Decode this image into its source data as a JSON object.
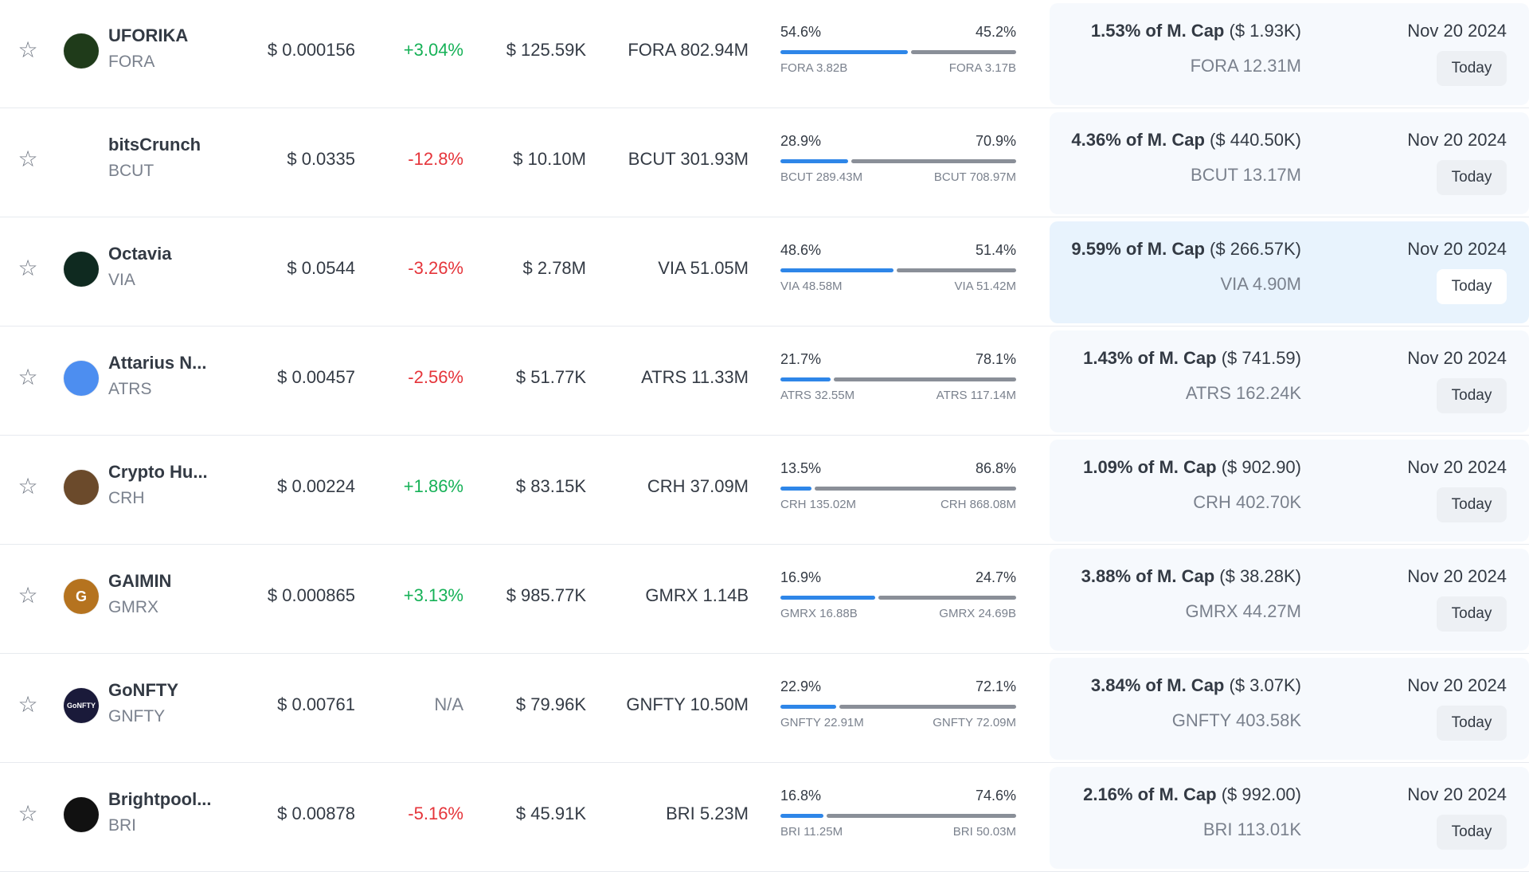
{
  "rows": [
    {
      "name": "UFORIKA",
      "symbol": "FORA",
      "logo_icon": "uforika-logo-icon",
      "logo_text": "",
      "logo_color": "#1f3b1a",
      "price": "$ 0.000156",
      "change": "+3.04%",
      "change_dir": "pos",
      "volume": "$ 125.59K",
      "unlock": "FORA 802.94M",
      "pct_left": "54.6%",
      "pct_right": "45.2%",
      "pct_left_value": 54.6,
      "pct_right_value": 45.2,
      "sub_left": "FORA 3.82B",
      "sub_right": "FORA 3.17B",
      "mcap_pct": "1.53% of M. Cap",
      "mcap_usd": "($ 1.93K)",
      "next_amount": "FORA 12.31M",
      "date": "Nov 20 2024",
      "date_badge": "Today",
      "highlight": false
    },
    {
      "name": "bitsCrunch",
      "symbol": "BCUT",
      "logo_icon": "bitscrunch-logo-icon",
      "logo_text": "",
      "logo_color": "#ffffff",
      "price": "$ 0.0335",
      "change": "-12.8%",
      "change_dir": "neg",
      "volume": "$ 10.10M",
      "unlock": "BCUT 301.93M",
      "pct_left": "28.9%",
      "pct_right": "70.9%",
      "pct_left_value": 28.9,
      "pct_right_value": 70.9,
      "sub_left": "BCUT 289.43M",
      "sub_right": "BCUT 708.97M",
      "mcap_pct": "4.36% of M. Cap",
      "mcap_usd": "($ 440.50K)",
      "next_amount": "BCUT 13.17M",
      "date": "Nov 20 2024",
      "date_badge": "Today",
      "highlight": false
    },
    {
      "name": "Octavia",
      "symbol": "VIA",
      "logo_icon": "octavia-logo-icon",
      "logo_text": "",
      "logo_color": "#0f2a20",
      "price": "$ 0.0544",
      "change": "-3.26%",
      "change_dir": "neg",
      "volume": "$ 2.78M",
      "unlock": "VIA 51.05M",
      "pct_left": "48.6%",
      "pct_right": "51.4%",
      "pct_left_value": 48.6,
      "pct_right_value": 51.4,
      "sub_left": "VIA 48.58M",
      "sub_right": "VIA 51.42M",
      "mcap_pct": "9.59% of M. Cap",
      "mcap_usd": "($ 266.57K)",
      "next_amount": "VIA 4.90M",
      "date": "Nov 20 2024",
      "date_badge": "Today",
      "highlight": true
    },
    {
      "name": "Attarius N...",
      "symbol": "ATRS",
      "logo_icon": "attarius-logo-icon",
      "logo_text": "",
      "logo_color": "#4d8ef0",
      "price": "$ 0.00457",
      "change": "-2.56%",
      "change_dir": "neg",
      "volume": "$ 51.77K",
      "unlock": "ATRS 11.33M",
      "pct_left": "21.7%",
      "pct_right": "78.1%",
      "pct_left_value": 21.7,
      "pct_right_value": 78.1,
      "sub_left": "ATRS 32.55M",
      "sub_right": "ATRS 117.14M",
      "mcap_pct": "1.43% of M. Cap",
      "mcap_usd": "($ 741.59)",
      "next_amount": "ATRS 162.24K",
      "date": "Nov 20 2024",
      "date_badge": "Today",
      "highlight": false
    },
    {
      "name": "Crypto Hu...",
      "symbol": "CRH",
      "logo_icon": "crypto-hunters-logo-icon",
      "logo_text": "",
      "logo_color": "#6b4a2b",
      "price": "$ 0.00224",
      "change": "+1.86%",
      "change_dir": "pos",
      "volume": "$ 83.15K",
      "unlock": "CRH 37.09M",
      "pct_left": "13.5%",
      "pct_right": "86.8%",
      "pct_left_value": 13.5,
      "pct_right_value": 86.8,
      "sub_left": "CRH 135.02M",
      "sub_right": "CRH 868.08M",
      "mcap_pct": "1.09% of M. Cap",
      "mcap_usd": "($ 902.90)",
      "next_amount": "CRH 402.70K",
      "date": "Nov 20 2024",
      "date_badge": "Today",
      "highlight": false
    },
    {
      "name": "GAIMIN",
      "symbol": "GMRX",
      "logo_icon": "gaimin-logo-icon",
      "logo_text": "G",
      "logo_color": "#b5731f",
      "price": "$ 0.000865",
      "change": "+3.13%",
      "change_dir": "pos",
      "volume": "$ 985.77K",
      "unlock": "GMRX 1.14B",
      "pct_left": "16.9%",
      "pct_right": "24.7%",
      "pct_left_value": 16.9,
      "pct_right_value": 24.7,
      "sub_left": "GMRX 16.88B",
      "sub_right": "GMRX 24.69B",
      "mcap_pct": "3.88% of M. Cap",
      "mcap_usd": "($ 38.28K)",
      "next_amount": "GMRX 44.27M",
      "date": "Nov 20 2024",
      "date_badge": "Today",
      "highlight": false
    },
    {
      "name": "GoNFTY",
      "symbol": "GNFTY",
      "logo_icon": "gonfty-logo-icon",
      "logo_text": "GoNFTY",
      "logo_color": "#1a1a3a",
      "price": "$ 0.00761",
      "change": "N/A",
      "change_dir": "na",
      "volume": "$ 79.96K",
      "unlock": "GNFTY 10.50M",
      "pct_left": "22.9%",
      "pct_right": "72.1%",
      "pct_left_value": 22.9,
      "pct_right_value": 72.1,
      "sub_left": "GNFTY 22.91M",
      "sub_right": "GNFTY 72.09M",
      "mcap_pct": "3.84% of M. Cap",
      "mcap_usd": "($ 3.07K)",
      "next_amount": "GNFTY 403.58K",
      "date": "Nov 20 2024",
      "date_badge": "Today",
      "highlight": false
    },
    {
      "name": "Brightpool...",
      "symbol": "BRI",
      "logo_icon": "brightpool-logo-icon",
      "logo_text": "",
      "logo_color": "#111111",
      "price": "$ 0.00878",
      "change": "-5.16%",
      "change_dir": "neg",
      "volume": "$ 45.91K",
      "unlock": "BRI 5.23M",
      "pct_left": "16.8%",
      "pct_right": "74.6%",
      "pct_left_value": 16.8,
      "pct_right_value": 74.6,
      "sub_left": "BRI 11.25M",
      "sub_right": "BRI 50.03M",
      "mcap_pct": "2.16% of M. Cap",
      "mcap_usd": "($ 992.00)",
      "next_amount": "BRI 113.01K",
      "date": "Nov 20 2024",
      "date_badge": "Today",
      "highlight": false
    }
  ],
  "icons": {
    "favorite": "star-outline-icon"
  },
  "colors": {
    "positive": "#16b157",
    "negative": "#e5343a",
    "bar_primary": "#2e86e8",
    "bar_secondary": "#8a8f98",
    "card_bg": "#f6f9fd",
    "card_highlight": "#e8f3fd"
  }
}
